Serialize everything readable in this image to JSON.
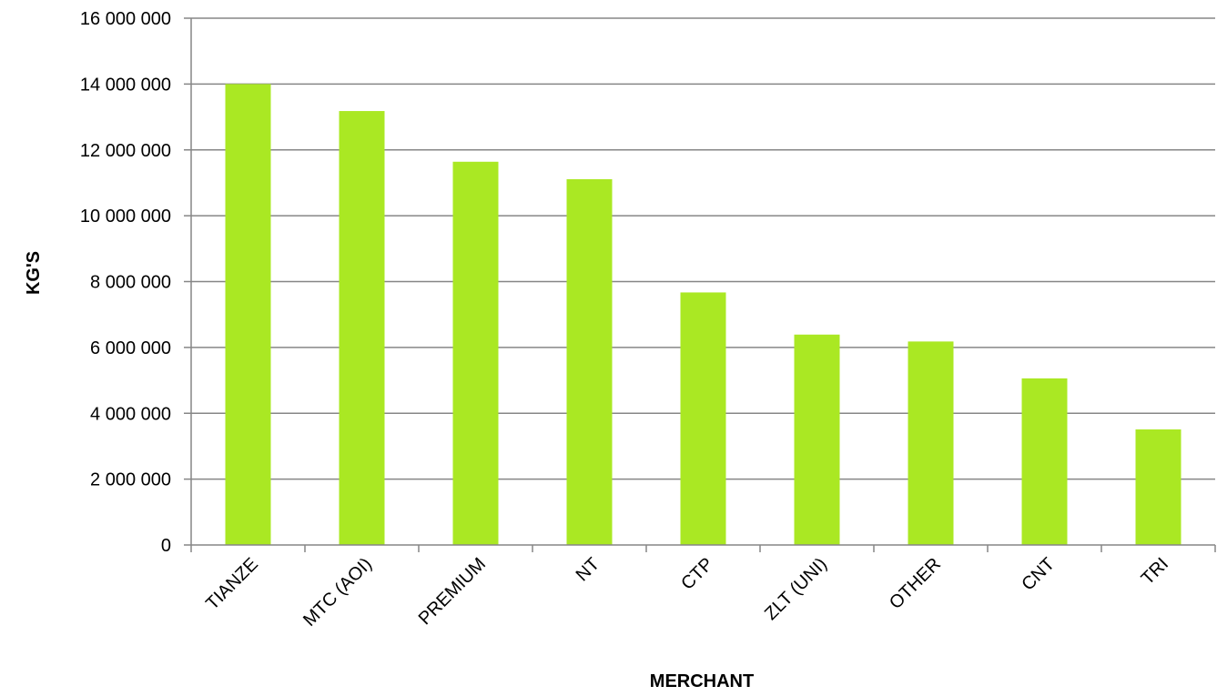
{
  "colors": {
    "bar": "#aae823",
    "grid": "#868686",
    "text": "#000000"
  },
  "chart_data": {
    "type": "bar",
    "title": "",
    "xlabel": "MERCHANT",
    "ylabel": "KG'S",
    "categories": [
      "TIANZE",
      "MTC (AOI)",
      "PREMIUM",
      "NT",
      "CTP",
      "ZLT (UNI)",
      "OTHER",
      "CNT",
      "TRI"
    ],
    "values": [
      14000000,
      13180000,
      11640000,
      11110000,
      7670000,
      6390000,
      6180000,
      5060000,
      3510000
    ],
    "ylim": [
      0,
      16000000
    ],
    "yticks": [
      0,
      2000000,
      4000000,
      6000000,
      8000000,
      10000000,
      12000000,
      14000000,
      16000000
    ],
    "ytick_labels": [
      "0",
      "2 000 000",
      "4 000 000",
      "6 000 000",
      "8 000 000",
      "10 000 000",
      "12 000 000",
      "14 000 000",
      "16 000 000"
    ],
    "grid": true,
    "legend": "none"
  }
}
